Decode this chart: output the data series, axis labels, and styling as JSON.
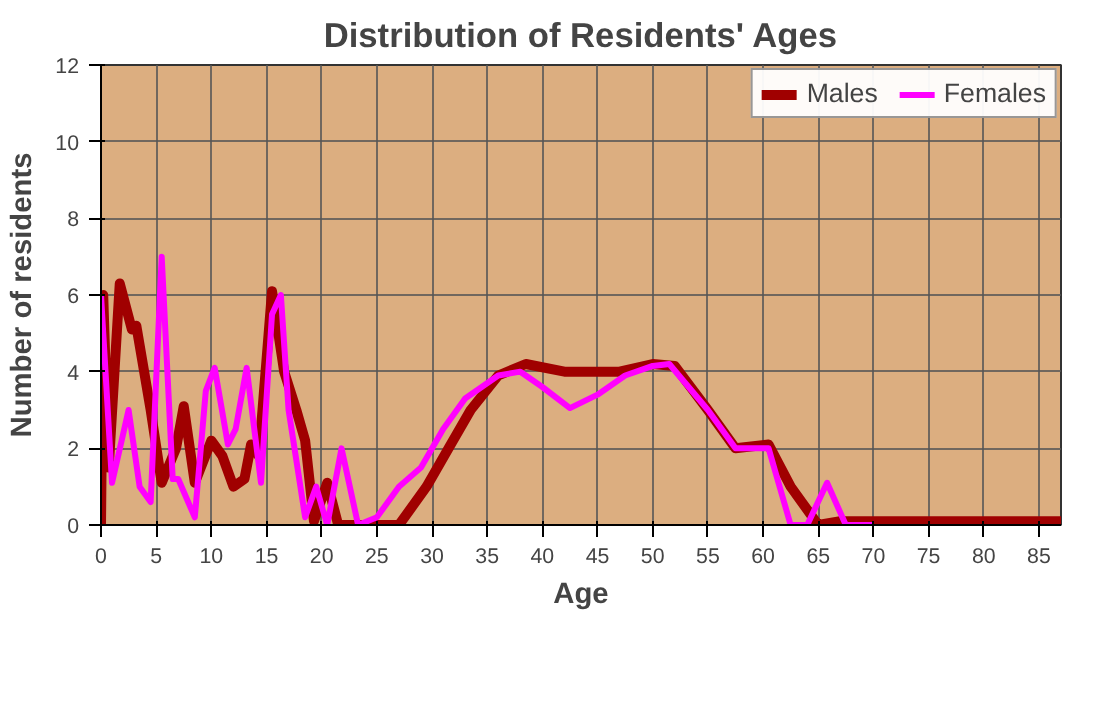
{
  "chart_data": {
    "type": "line",
    "title": "Distribution of Residents' Ages",
    "xlabel": "Age",
    "ylabel": "Number of residents",
    "xlim": [
      0,
      87
    ],
    "ylim": [
      0,
      12
    ],
    "xticks": [
      0,
      5,
      10,
      15,
      20,
      25,
      30,
      35,
      40,
      45,
      50,
      55,
      60,
      65,
      70,
      75,
      80,
      85
    ],
    "yticks": [
      0,
      2,
      4,
      6,
      8,
      10,
      12
    ],
    "grid": true,
    "legend": "top right",
    "line_style": "solid",
    "series": [
      {
        "name": "Males",
        "color": "#a00000",
        "x": [
          0,
          0.2,
          0.7,
          1.7,
          2.8,
          3.2,
          4.5,
          5.5,
          6.8,
          7.5,
          8.5,
          10,
          11,
          12,
          13,
          13.6,
          14.3,
          15.5,
          16.6,
          17.7,
          18.5,
          19.3,
          20.5,
          21.5,
          25,
          27,
          29.5,
          31.5,
          33.5,
          36,
          38.5,
          42,
          47,
          50,
          52,
          55,
          57.5,
          60.5,
          62.5,
          65,
          67,
          70,
          75,
          80,
          87
        ],
        "values": [
          0,
          6,
          1.5,
          6.3,
          5.1,
          5.2,
          3,
          1.1,
          2,
          3.1,
          1.1,
          2.2,
          1.8,
          1,
          1.2,
          2.1,
          1.8,
          6.1,
          4,
          3,
          2.2,
          0.1,
          1.1,
          0,
          0,
          0,
          1,
          2,
          3,
          3.9,
          4.2,
          4,
          4,
          4.2,
          4.15,
          3,
          2,
          2.1,
          1,
          0,
          0.1,
          0.1,
          0.1,
          0.1,
          0.1
        ]
      },
      {
        "name": "Females",
        "color": "#ff00ff",
        "x": [
          0,
          1,
          2.5,
          3.5,
          4.5,
          5.5,
          6.5,
          7,
          8.5,
          9.5,
          10.3,
          11.5,
          12.2,
          13.2,
          14.5,
          15.5,
          16.3,
          17,
          18.5,
          19.5,
          20.5,
          21.8,
          23.3,
          25,
          27,
          29,
          31,
          33,
          36,
          38,
          40,
          42.5,
          45,
          47.5,
          50,
          51.5,
          55,
          57.5,
          60.5,
          62.5,
          64,
          65.8,
          67.5,
          70
        ],
        "values": [
          6,
          1.1,
          3,
          1,
          0.6,
          7,
          1.2,
          1.2,
          0.2,
          3.5,
          4.1,
          2.1,
          2.5,
          4.1,
          1.1,
          5.5,
          6,
          3,
          0.2,
          1,
          0,
          2,
          0,
          0.2,
          1,
          1.5,
          2.5,
          3.3,
          3.9,
          4,
          3.6,
          3.05,
          3.4,
          3.9,
          4.15,
          4.2,
          3,
          2,
          2,
          0,
          0,
          1.1,
          0,
          0
        ]
      }
    ]
  }
}
